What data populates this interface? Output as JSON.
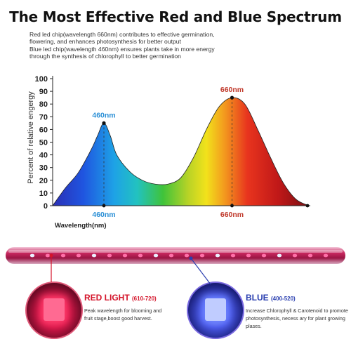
{
  "title": "The Most Effective Red and Blue Spectrum",
  "description": [
    "Red led chip(wavelength 660nm) contributes to effective germination,",
    "flowering, and enhances photosynthesis for better output",
    "Blue led chip(wavelength 460nm) ensures plants take in more energy",
    "through the synthesis of chlorophyll to better germination"
  ],
  "chart_data": {
    "type": "area",
    "ylabel": "Percent of relative engergy",
    "xlabel": "Wavelength(nm)",
    "ylim": [
      0,
      100
    ],
    "yticks": [
      0,
      10,
      20,
      30,
      40,
      50,
      60,
      70,
      80,
      90,
      100
    ],
    "x_tick_labels": [
      "460nm",
      "660nm"
    ],
    "grid": false,
    "series": [
      {
        "points": [
          [
            380,
            0
          ],
          [
            400,
            14
          ],
          [
            420,
            26
          ],
          [
            440,
            44
          ],
          [
            450,
            55
          ],
          [
            460,
            65
          ],
          [
            470,
            55
          ],
          [
            480,
            40
          ],
          [
            500,
            27
          ],
          [
            520,
            20
          ],
          [
            540,
            17
          ],
          [
            560,
            17
          ],
          [
            580,
            22
          ],
          [
            600,
            38
          ],
          [
            620,
            60
          ],
          [
            640,
            78
          ],
          [
            660,
            85
          ],
          [
            680,
            80
          ],
          [
            700,
            60
          ],
          [
            720,
            38
          ],
          [
            740,
            18
          ],
          [
            760,
            5
          ],
          [
            780,
            0
          ]
        ]
      }
    ],
    "annotations": [
      {
        "x": 460,
        "y": 65,
        "text": "460nm",
        "color": "#2a8fd6"
      },
      {
        "x": 660,
        "y": 85,
        "text": "660nm",
        "color": "#c0392b"
      }
    ]
  },
  "red_light": {
    "label": "RED LIGHT",
    "range": "(610-720)",
    "lines": [
      "Peak wavelength for blooming and",
      "fruit stage,boost good harvest."
    ],
    "color": "#d4142a"
  },
  "blue_light": {
    "label": "BLUE",
    "range": "(400-520)",
    "lines": [
      "Increase Chlorophyll & Carotenoid to promote",
      "photosynthesis, necess ary for plant growing",
      "plases."
    ],
    "color": "#2a3fb0"
  }
}
